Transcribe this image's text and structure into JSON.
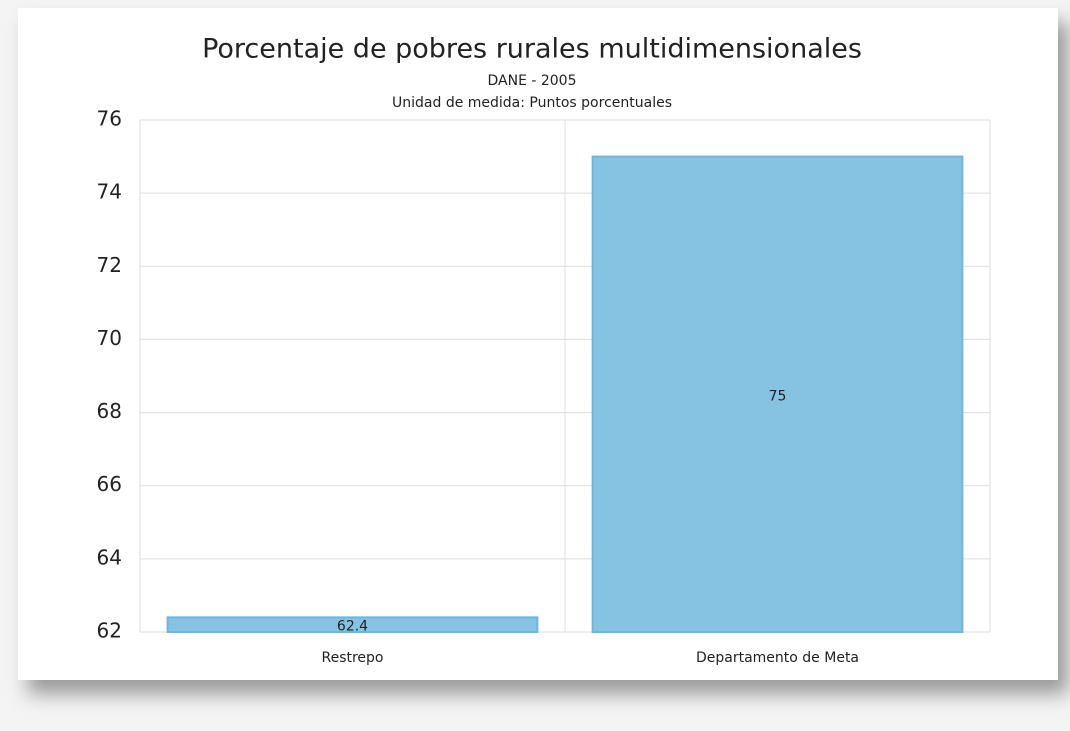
{
  "chart_data": {
    "type": "bar",
    "title": "Porcentaje de pobres rurales multidimensionales",
    "subtitle": "DANE - 2005",
    "note": "Unidad de medida: Puntos porcentuales",
    "categories": [
      "Restrepo",
      "Departamento de Meta"
    ],
    "values": [
      62.4,
      75
    ],
    "color": "#86c3e3",
    "ylim": [
      62,
      76
    ],
    "yticks": [
      62,
      64,
      66,
      68,
      70,
      72,
      74,
      76
    ],
    "grid": true
  }
}
